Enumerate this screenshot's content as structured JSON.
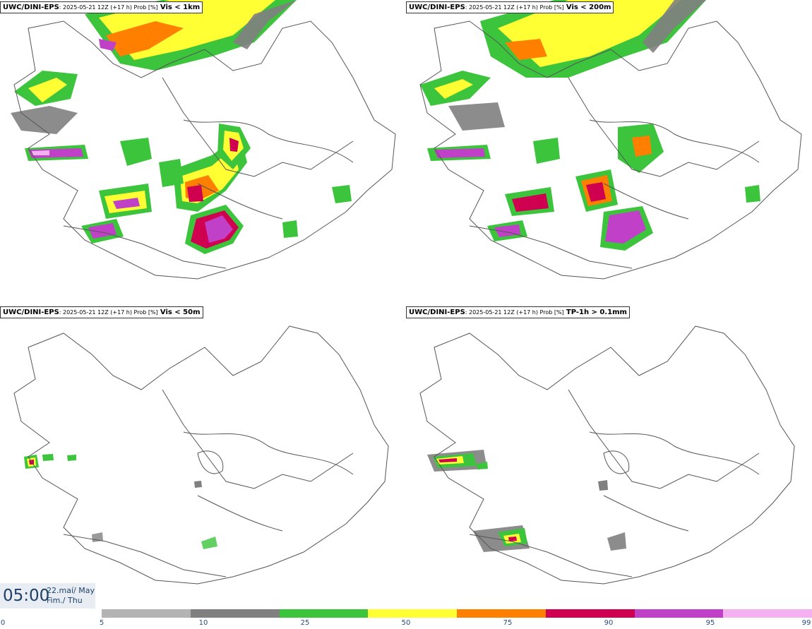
{
  "panels": [
    {
      "model": "UWC/DINI-EPS",
      "meta": ": 2025-05-21 12Z (+17 h) Prob [%]",
      "field": "Vis < 1km"
    },
    {
      "model": "UWC/DINI-EPS",
      "meta": ": 2025-05-21 12Z (+17 h) Prob [%]",
      "field": "Vis < 200m"
    },
    {
      "model": "UWC/DINI-EPS",
      "meta": ": 2025-05-21 12Z (+17 h) Prob [%]",
      "field": "Vis < 50m"
    },
    {
      "model": "UWC/DINI-EPS",
      "meta": ": 2025-05-21 12Z (+17 h) Prob [%]",
      "field": "TP-1h > 0.1mm"
    }
  ],
  "valid_time": {
    "time": "05:00",
    "date_line1": "22.maí/ May",
    "date_line2": "Fim./ Thu"
  },
  "colorbar": {
    "labels": [
      "0",
      "5",
      "10",
      "25",
      "50",
      "75",
      "90",
      "95",
      "99"
    ],
    "colors": [
      "#b3b3b3",
      "#808080",
      "#3cc43c",
      "#ffff33",
      "#ff7f00",
      "#d00050",
      "#c040c8",
      "#f4b0f0"
    ]
  },
  "colors": {
    "map_outline": "#555555",
    "title_text": "#000000",
    "time_text": "#1f3f66"
  }
}
